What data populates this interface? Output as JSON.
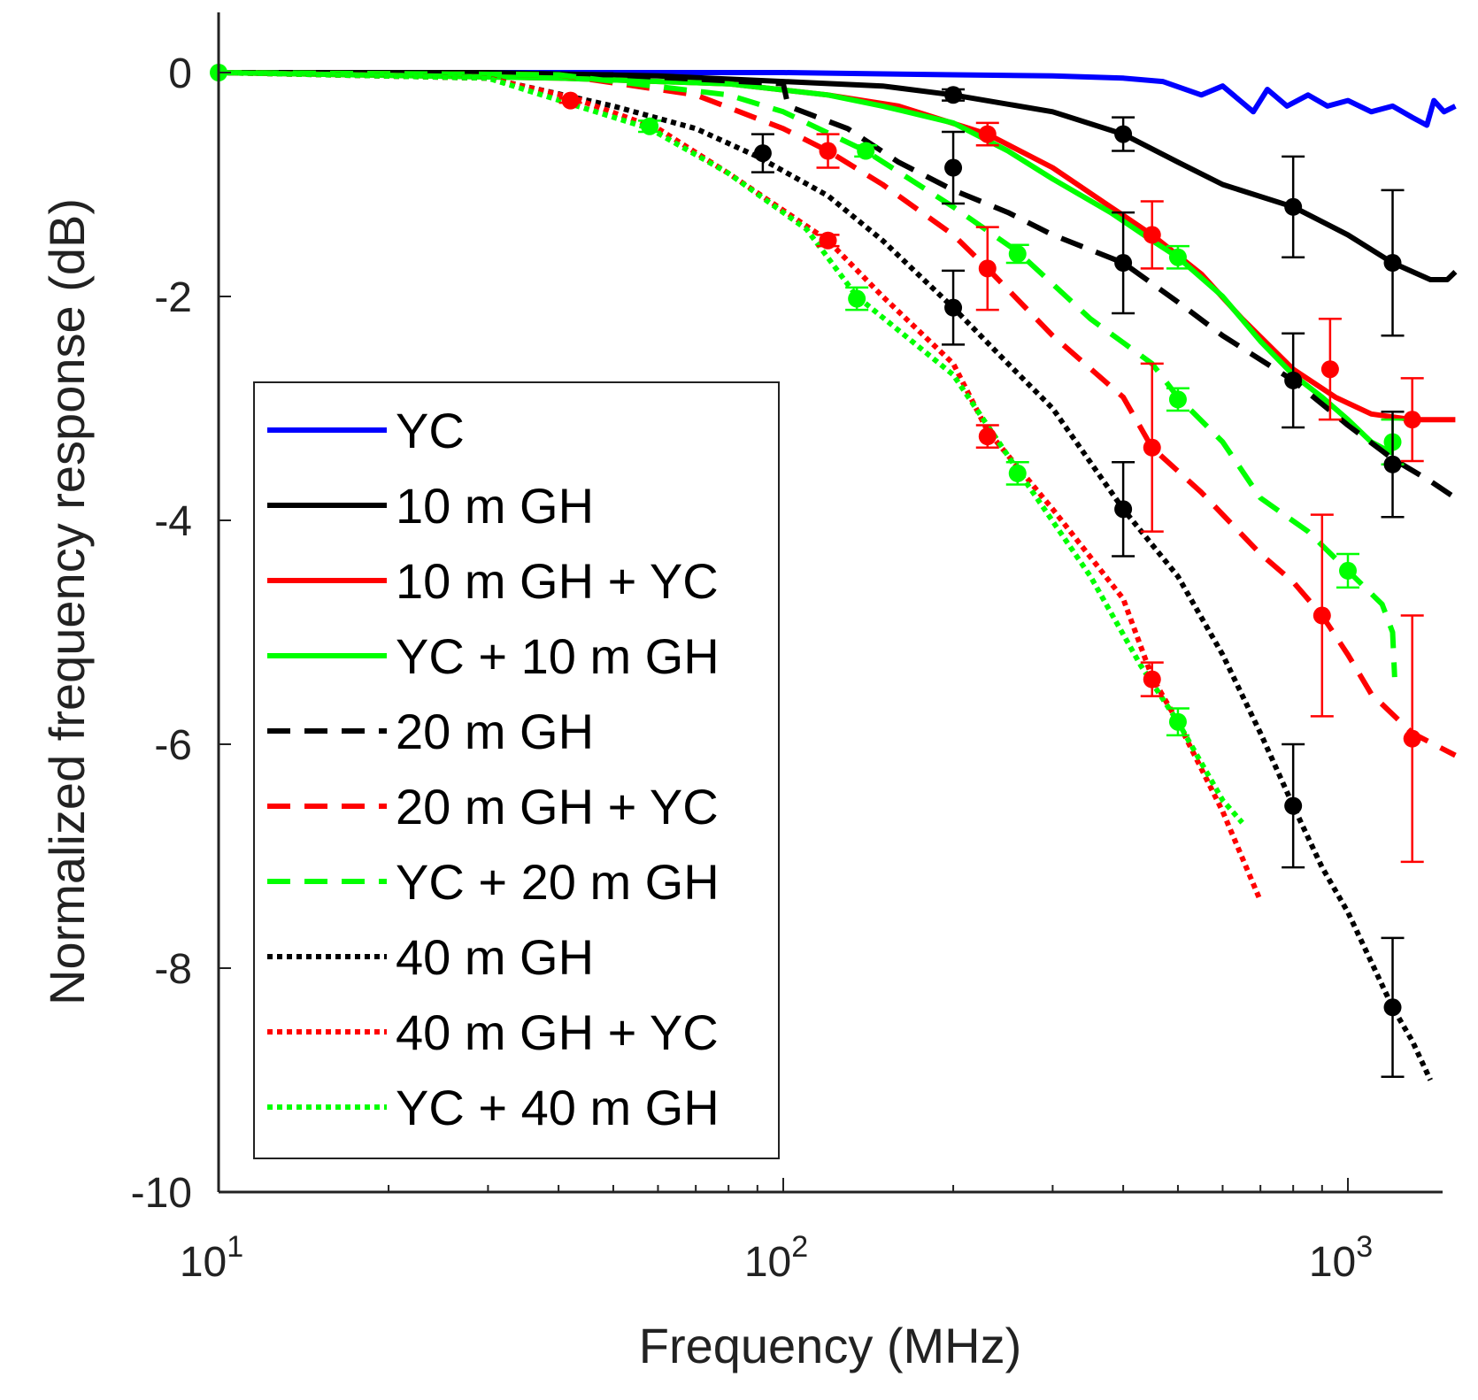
{
  "chart_data": {
    "type": "line",
    "title": "",
    "xlabel": "Frequency (MHz)",
    "ylabel": "Normalized frequency response (dB)",
    "xscale": "log",
    "xlim": [
      10,
      1550
    ],
    "ylim": [
      -10,
      0.5
    ],
    "grid": false,
    "legend_position": "lower-left",
    "x_ticks": [
      {
        "value": 10,
        "base": "10",
        "exp": "1"
      },
      {
        "value": 100,
        "base": "10",
        "exp": "2"
      },
      {
        "value": 1000,
        "base": "10",
        "exp": "3"
      }
    ],
    "y_ticks": [
      {
        "value": 0,
        "label": "0"
      },
      {
        "value": -2,
        "label": "-2"
      },
      {
        "value": -4,
        "label": "-4"
      },
      {
        "value": -6,
        "label": "-6"
      },
      {
        "value": -8,
        "label": "-8"
      },
      {
        "value": -10,
        "label": "-10"
      }
    ],
    "series": [
      {
        "name": "YC",
        "color": "#0000ff",
        "style": "solid",
        "points": [
          [
            10,
            0
          ],
          [
            20,
            0
          ],
          [
            50,
            0
          ],
          [
            100,
            0
          ],
          [
            200,
            -0.02
          ],
          [
            300,
            -0.03
          ],
          [
            400,
            -0.05
          ],
          [
            470,
            -0.08
          ],
          [
            550,
            -0.2
          ],
          [
            600,
            -0.12
          ],
          [
            680,
            -0.35
          ],
          [
            720,
            -0.15
          ],
          [
            780,
            -0.3
          ],
          [
            850,
            -0.2
          ],
          [
            920,
            -0.3
          ],
          [
            1000,
            -0.25
          ],
          [
            1100,
            -0.35
          ],
          [
            1200,
            -0.3
          ],
          [
            1300,
            -0.4
          ],
          [
            1380,
            -0.47
          ],
          [
            1420,
            -0.25
          ],
          [
            1480,
            -0.35
          ],
          [
            1550,
            -0.3
          ]
        ],
        "markers": []
      },
      {
        "name": "10 m GH",
        "color": "#000000",
        "style": "solid",
        "points": [
          [
            10,
            0
          ],
          [
            30,
            0
          ],
          [
            60,
            -0.03
          ],
          [
            100,
            -0.08
          ],
          [
            150,
            -0.12
          ],
          [
            200,
            -0.2
          ],
          [
            300,
            -0.35
          ],
          [
            400,
            -0.55
          ],
          [
            500,
            -0.8
          ],
          [
            600,
            -1.0
          ],
          [
            800,
            -1.2
          ],
          [
            1000,
            -1.45
          ],
          [
            1200,
            -1.7
          ],
          [
            1400,
            -1.85
          ],
          [
            1500,
            -1.85
          ],
          [
            1550,
            -1.78
          ]
        ],
        "markers": [
          {
            "x": 200,
            "y": -0.2,
            "err": 0.05
          },
          {
            "x": 400,
            "y": -0.55,
            "err": 0.15
          },
          {
            "x": 800,
            "y": -1.2,
            "err": 0.45
          },
          {
            "x": 1200,
            "y": -1.7,
            "err": 0.65
          }
        ]
      },
      {
        "name": "10 m GH + YC",
        "color": "#ff0000",
        "style": "solid",
        "points": [
          [
            10,
            0
          ],
          [
            40,
            -0.05
          ],
          [
            80,
            -0.1
          ],
          [
            120,
            -0.2
          ],
          [
            160,
            -0.3
          ],
          [
            230,
            -0.55
          ],
          [
            300,
            -0.85
          ],
          [
            380,
            -1.2
          ],
          [
            450,
            -1.45
          ],
          [
            550,
            -1.8
          ],
          [
            650,
            -2.2
          ],
          [
            800,
            -2.65
          ],
          [
            950,
            -2.9
          ],
          [
            1100,
            -3.05
          ],
          [
            1300,
            -3.1
          ],
          [
            1550,
            -3.1
          ]
        ],
        "markers": [
          {
            "x": 230,
            "y": -0.55,
            "err": 0.1
          },
          {
            "x": 450,
            "y": -1.45,
            "err": 0.3
          },
          {
            "x": 930,
            "y": -2.65,
            "err": 0.45
          },
          {
            "x": 1300,
            "y": -3.1,
            "err": 0.37
          }
        ]
      },
      {
        "name": "YC + 10 m GH",
        "color": "#00ff00",
        "style": "solid",
        "points": [
          [
            10,
            0
          ],
          [
            40,
            -0.05
          ],
          [
            80,
            -0.1
          ],
          [
            120,
            -0.2
          ],
          [
            150,
            -0.3
          ],
          [
            200,
            -0.45
          ],
          [
            250,
            -0.7
          ],
          [
            300,
            -0.95
          ],
          [
            380,
            -1.25
          ],
          [
            450,
            -1.5
          ],
          [
            500,
            -1.65
          ],
          [
            600,
            -2.0
          ],
          [
            700,
            -2.4
          ],
          [
            800,
            -2.7
          ],
          [
            900,
            -2.9
          ],
          [
            1000,
            -3.1
          ],
          [
            1100,
            -3.3
          ],
          [
            1200,
            -3.4
          ]
        ],
        "markers": [
          {
            "x": 500,
            "y": -1.65,
            "err": 0.1
          },
          {
            "x": 1200,
            "y": -3.3,
            "err": 0.2
          }
        ]
      },
      {
        "name": "20 m GH",
        "color": "#000000",
        "style": "dashed",
        "points": [
          [
            10,
            0
          ],
          [
            50,
            -0.02
          ],
          [
            100,
            -0.1
          ],
          [
            102,
            -0.3
          ],
          [
            130,
            -0.5
          ],
          [
            160,
            -0.8
          ],
          [
            200,
            -1.05
          ],
          [
            250,
            -1.25
          ],
          [
            300,
            -1.45
          ],
          [
            400,
            -1.7
          ],
          [
            500,
            -2.05
          ],
          [
            600,
            -2.35
          ],
          [
            800,
            -2.75
          ],
          [
            1000,
            -3.15
          ],
          [
            1200,
            -3.45
          ],
          [
            1400,
            -3.65
          ],
          [
            1550,
            -3.8
          ]
        ],
        "markers": [
          {
            "x": 200,
            "y": -0.85,
            "err": 0.32
          },
          {
            "x": 400,
            "y": -1.7,
            "err": 0.45
          },
          {
            "x": 800,
            "y": -2.75,
            "err": 0.42
          },
          {
            "x": 1200,
            "y": -3.5,
            "err": 0.47
          }
        ]
      },
      {
        "name": "20 m GH + YC",
        "color": "#ff0000",
        "style": "dashed",
        "points": [
          [
            10,
            0
          ],
          [
            40,
            -0.02
          ],
          [
            70,
            -0.2
          ],
          [
            100,
            -0.5
          ],
          [
            120,
            -0.7
          ],
          [
            150,
            -1.0
          ],
          [
            200,
            -1.45
          ],
          [
            230,
            -1.75
          ],
          [
            300,
            -2.35
          ],
          [
            400,
            -2.9
          ],
          [
            450,
            -3.35
          ],
          [
            550,
            -3.75
          ],
          [
            700,
            -4.3
          ],
          [
            800,
            -4.55
          ],
          [
            900,
            -4.85
          ],
          [
            1000,
            -5.2
          ],
          [
            1100,
            -5.55
          ],
          [
            1300,
            -5.9
          ],
          [
            1550,
            -6.1
          ]
        ],
        "markers": [
          {
            "x": 120,
            "y": -0.7,
            "err": 0.15
          },
          {
            "x": 230,
            "y": -1.75,
            "err": 0.37
          },
          {
            "x": 450,
            "y": -3.35,
            "err": 0.75
          },
          {
            "x": 900,
            "y": -4.85,
            "err": 0.9
          },
          {
            "x": 1300,
            "y": -5.95,
            "err": 1.1
          }
        ]
      },
      {
        "name": "YC + 20 m GH",
        "color": "#00ff00",
        "style": "dashed",
        "points": [
          [
            10,
            0
          ],
          [
            40,
            -0.02
          ],
          [
            80,
            -0.2
          ],
          [
            100,
            -0.35
          ],
          [
            140,
            -0.7
          ],
          [
            200,
            -1.2
          ],
          [
            260,
            -1.6
          ],
          [
            350,
            -2.2
          ],
          [
            450,
            -2.6
          ],
          [
            500,
            -2.9
          ],
          [
            600,
            -3.3
          ],
          [
            700,
            -3.8
          ],
          [
            850,
            -4.1
          ],
          [
            1000,
            -4.45
          ],
          [
            1150,
            -4.75
          ],
          [
            1200,
            -5.0
          ],
          [
            1210,
            -5.4
          ]
        ],
        "markers": [
          {
            "x": 140,
            "y": -0.7,
            "err": 0.05
          },
          {
            "x": 260,
            "y": -1.62,
            "err": 0.08
          },
          {
            "x": 500,
            "y": -2.92,
            "err": 0.1
          },
          {
            "x": 1000,
            "y": -4.45,
            "err": 0.15
          }
        ]
      },
      {
        "name": "40 m GH",
        "color": "#000000",
        "style": "dotted",
        "points": [
          [
            10,
            0
          ],
          [
            30,
            -0.05
          ],
          [
            50,
            -0.3
          ],
          [
            70,
            -0.5
          ],
          [
            90,
            -0.75
          ],
          [
            120,
            -1.1
          ],
          [
            150,
            -1.5
          ],
          [
            200,
            -2.1
          ],
          [
            250,
            -2.6
          ],
          [
            300,
            -3.0
          ],
          [
            400,
            -3.9
          ],
          [
            500,
            -4.5
          ],
          [
            600,
            -5.2
          ],
          [
            700,
            -5.9
          ],
          [
            800,
            -6.55
          ],
          [
            900,
            -7.1
          ],
          [
            1000,
            -7.5
          ],
          [
            1200,
            -8.35
          ],
          [
            1300,
            -8.65
          ],
          [
            1400,
            -9.0
          ]
        ],
        "markers": [
          {
            "x": 92,
            "y": -0.72,
            "err": 0.17
          },
          {
            "x": 200,
            "y": -2.1,
            "err": 0.33
          },
          {
            "x": 400,
            "y": -3.9,
            "err": 0.42
          },
          {
            "x": 800,
            "y": -6.55,
            "err": 0.55
          },
          {
            "x": 1200,
            "y": -8.35,
            "err": 0.62
          }
        ]
      },
      {
        "name": "40 m GH + YC",
        "color": "#ff0000",
        "style": "dotted",
        "points": [
          [
            10,
            0
          ],
          [
            30,
            -0.05
          ],
          [
            42,
            -0.22
          ],
          [
            60,
            -0.5
          ],
          [
            80,
            -0.9
          ],
          [
            120,
            -1.5
          ],
          [
            150,
            -2.0
          ],
          [
            200,
            -2.6
          ],
          [
            230,
            -3.2
          ],
          [
            300,
            -3.9
          ],
          [
            400,
            -4.7
          ],
          [
            450,
            -5.4
          ],
          [
            500,
            -5.8
          ],
          [
            600,
            -6.6
          ],
          [
            700,
            -7.4
          ]
        ],
        "markers": [
          {
            "x": 42,
            "y": -0.25,
            "err": 0.02
          },
          {
            "x": 120,
            "y": -1.5,
            "err": 0.05
          },
          {
            "x": 230,
            "y": -3.25,
            "err": 0.1
          },
          {
            "x": 450,
            "y": -5.42,
            "err": 0.15
          }
        ]
      },
      {
        "name": "YC + 40 m GH",
        "color": "#00ff00",
        "style": "dotted",
        "points": [
          [
            10,
            0
          ],
          [
            30,
            -0.05
          ],
          [
            58,
            -0.5
          ],
          [
            80,
            -0.9
          ],
          [
            110,
            -1.4
          ],
          [
            135,
            -2.0
          ],
          [
            200,
            -2.7
          ],
          [
            260,
            -3.55
          ],
          [
            350,
            -4.5
          ],
          [
            430,
            -5.3
          ],
          [
            500,
            -5.8
          ],
          [
            600,
            -6.5
          ],
          [
            650,
            -6.7
          ]
        ],
        "markers": [
          {
            "x": 10,
            "y": 0,
            "err": 0
          },
          {
            "x": 58,
            "y": -0.48,
            "err": 0.05
          },
          {
            "x": 135,
            "y": -2.02,
            "err": 0.1
          },
          {
            "x": 260,
            "y": -3.58,
            "err": 0.1
          },
          {
            "x": 500,
            "y": -5.8,
            "err": 0.12
          }
        ]
      }
    ]
  }
}
